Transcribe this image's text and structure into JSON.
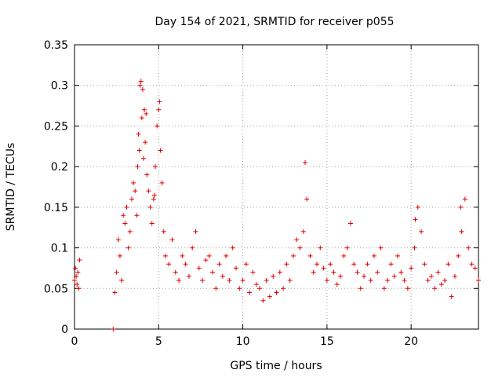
{
  "chart_data": {
    "type": "scatter",
    "title": "Day 154 of 2021, SRMTID for receiver p055",
    "xlabel": "GPS time / hours",
    "ylabel": "SRMTID / TECUs",
    "xlim": [
      0,
      24
    ],
    "ylim": [
      0,
      0.35
    ],
    "xticks": [
      0,
      5,
      10,
      15,
      20
    ],
    "xtick_labels": [
      "0",
      "5",
      "10",
      "15",
      "20"
    ],
    "yticks": [
      0,
      0.05,
      0.1,
      0.15,
      0.2,
      0.25,
      0.3,
      0.35
    ],
    "ytick_labels": [
      "0",
      "0.05",
      "0.1",
      "0.15",
      "0.2",
      "0.25",
      "0.3",
      "0.35"
    ],
    "grid": true,
    "marker": "plus",
    "series_color": "#e00000",
    "series": [
      {
        "name": "SRMTID",
        "x": [
          0.0,
          0.05,
          0.1,
          0.15,
          0.2,
          0.25,
          0.3,
          2.3,
          2.4,
          2.5,
          2.6,
          2.7,
          2.8,
          2.9,
          3.0,
          3.1,
          3.2,
          3.3,
          3.4,
          3.5,
          3.6,
          3.7,
          3.75,
          3.8,
          3.85,
          3.9,
          3.95,
          4.0,
          4.1,
          4.2,
          4.3,
          4.4,
          4.5,
          4.6,
          4.7,
          4.8,
          4.9,
          5.0,
          5.05,
          5.1,
          5.2,
          5.3,
          5.4,
          5.6,
          5.8,
          6.0,
          6.2,
          6.4,
          6.6,
          6.8,
          7.0,
          7.2,
          7.4,
          7.6,
          7.8,
          8.0,
          8.2,
          8.4,
          8.6,
          8.8,
          9.0,
          9.2,
          9.4,
          9.6,
          9.8,
          10.0,
          10.2,
          10.4,
          10.6,
          10.8,
          11.0,
          11.2,
          11.4,
          11.6,
          11.8,
          12.0,
          12.2,
          12.4,
          12.6,
          12.8,
          13.0,
          13.2,
          13.4,
          13.6,
          13.8,
          14.0,
          14.2,
          14.4,
          14.6,
          14.8,
          15.0,
          15.2,
          15.4,
          15.6,
          15.8,
          16.0,
          16.2,
          16.4,
          16.6,
          16.8,
          17.0,
          17.2,
          17.4,
          17.6,
          17.8,
          18.0,
          18.2,
          18.4,
          18.6,
          18.8,
          19.0,
          19.2,
          19.4,
          19.6,
          19.8,
          20.0,
          20.2,
          20.4,
          20.6,
          20.8,
          21.0,
          21.2,
          21.4,
          21.6,
          21.8,
          22.0,
          22.2,
          22.4,
          22.6,
          22.8,
          23.0,
          23.2,
          23.4,
          23.6,
          23.8,
          24.0,
          4.05,
          4.15,
          4.25,
          4.75,
          13.7,
          20.25,
          22.95
        ],
        "y": [
          0.06,
          0.075,
          0.065,
          0.055,
          0.07,
          0.05,
          0.085,
          0.0,
          0.045,
          0.07,
          0.11,
          0.09,
          0.06,
          0.14,
          0.13,
          0.15,
          0.1,
          0.12,
          0.16,
          0.18,
          0.17,
          0.14,
          0.2,
          0.24,
          0.22,
          0.3,
          0.305,
          0.26,
          0.21,
          0.23,
          0.19,
          0.17,
          0.15,
          0.13,
          0.16,
          0.2,
          0.25,
          0.27,
          0.28,
          0.22,
          0.18,
          0.12,
          0.09,
          0.08,
          0.11,
          0.07,
          0.06,
          0.09,
          0.08,
          0.065,
          0.1,
          0.12,
          0.075,
          0.06,
          0.085,
          0.09,
          0.07,
          0.05,
          0.08,
          0.065,
          0.09,
          0.06,
          0.1,
          0.075,
          0.05,
          0.06,
          0.08,
          0.045,
          0.07,
          0.055,
          0.05,
          0.035,
          0.06,
          0.04,
          0.065,
          0.045,
          0.07,
          0.05,
          0.08,
          0.06,
          0.09,
          0.11,
          0.1,
          0.12,
          0.16,
          0.09,
          0.07,
          0.08,
          0.1,
          0.075,
          0.06,
          0.08,
          0.07,
          0.055,
          0.065,
          0.09,
          0.1,
          0.13,
          0.08,
          0.07,
          0.05,
          0.065,
          0.08,
          0.06,
          0.09,
          0.07,
          0.1,
          0.05,
          0.06,
          0.08,
          0.065,
          0.09,
          0.07,
          0.06,
          0.05,
          0.075,
          0.1,
          0.15,
          0.12,
          0.08,
          0.06,
          0.065,
          0.05,
          0.07,
          0.055,
          0.06,
          0.08,
          0.04,
          0.065,
          0.09,
          0.12,
          0.16,
          0.1,
          0.08,
          0.075,
          0.06,
          0.295,
          0.27,
          0.265,
          0.165,
          0.205,
          0.135,
          0.15
        ]
      }
    ]
  }
}
